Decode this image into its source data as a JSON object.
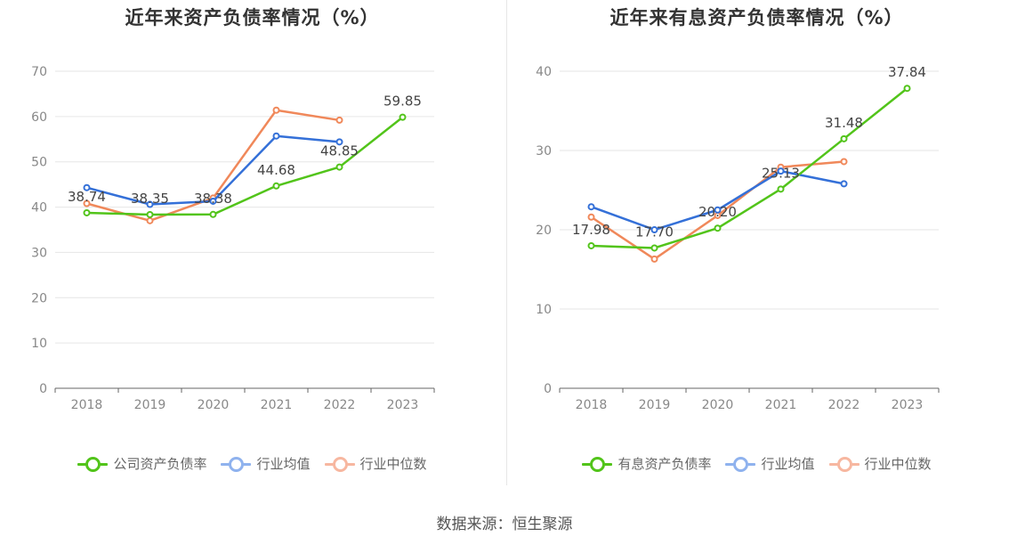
{
  "source_text": "数据来源：恒生聚源",
  "chart_data": [
    {
      "type": "line",
      "title": "近年来资产负债率情况（%）",
      "categories": [
        "2018",
        "2019",
        "2020",
        "2021",
        "2022",
        "2023"
      ],
      "ylim": [
        0,
        70
      ],
      "yticks": [
        0,
        10,
        20,
        30,
        40,
        50,
        60,
        70
      ],
      "grid": true,
      "legend_position": "bottom",
      "series": [
        {
          "name": "公司资产负债率",
          "color": "#52c41a",
          "values": [
            38.74,
            38.35,
            38.38,
            44.68,
            48.85,
            59.85
          ],
          "labels": [
            "38.74",
            "38.35",
            "38.38",
            "44.68",
            "48.85",
            "59.85"
          ]
        },
        {
          "name": "行业均值",
          "color": "#3470d8",
          "values": [
            44.3,
            40.6,
            41.3,
            55.7,
            54.4,
            null
          ]
        },
        {
          "name": "行业中位数",
          "color": "#f0885a",
          "values": [
            40.8,
            37.0,
            42.0,
            61.4,
            59.2,
            null
          ]
        }
      ],
      "legend_colors": [
        "#52c41a",
        "#8fb2ee",
        "#f7b7a0"
      ]
    },
    {
      "type": "line",
      "title": "近年来有息资产负债率情况（%）",
      "categories": [
        "2018",
        "2019",
        "2020",
        "2021",
        "2022",
        "2023"
      ],
      "ylim": [
        0,
        40
      ],
      "yticks": [
        0,
        10,
        20,
        30,
        40
      ],
      "grid": true,
      "legend_position": "bottom",
      "series": [
        {
          "name": "有息资产负债率",
          "color": "#52c41a",
          "values": [
            17.98,
            17.7,
            20.2,
            25.13,
            31.48,
            37.84
          ],
          "labels": [
            "17.98",
            "17.70",
            "20.20",
            "25.13",
            "31.48",
            "37.84"
          ]
        },
        {
          "name": "行业均值",
          "color": "#3470d8",
          "values": [
            22.9,
            20.0,
            22.5,
            27.4,
            25.8,
            null
          ]
        },
        {
          "name": "行业中位数",
          "color": "#f0885a",
          "values": [
            21.6,
            16.3,
            21.8,
            27.9,
            28.6,
            null
          ]
        }
      ],
      "legend_colors": [
        "#52c41a",
        "#8fb2ee",
        "#f7b7a0"
      ]
    }
  ]
}
